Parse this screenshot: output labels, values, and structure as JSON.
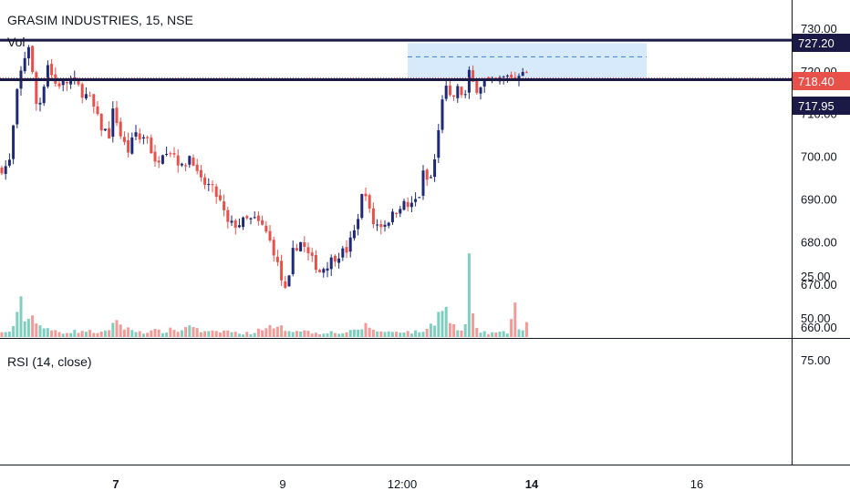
{
  "header": {
    "symbol_title": "GRASIM INDUSTRIES, 15, NSE",
    "volume_label": "Vol"
  },
  "rsi_pane": {
    "label": "RSI (14, close)"
  },
  "colors": {
    "up": "#1e2a78",
    "down": "#e8504a",
    "vol_up": "#7fcfc0",
    "vol_down": "#f29b98",
    "level_line": "#1b1a46",
    "range_box": "#cfe6fb",
    "current_tag": "#e8504a"
  },
  "price_tags": {
    "upper_level": "727.20",
    "current_price": "718.40",
    "lower_level": "717.95"
  },
  "chart_data": [
    {
      "type": "candlestick",
      "title": "GRASIM INDUSTRIES, 15, NSE",
      "ylim": [
        658,
        732
      ],
      "y_ticks": [
        "730.00",
        "720.00",
        "710.00",
        "700.00",
        "690.00",
        "680.00",
        "670.00",
        "660.00"
      ],
      "x_ticks": [
        {
          "label": "7",
          "bold": true
        },
        {
          "label": "9",
          "bold": false
        },
        {
          "label": "12:00",
          "bold": false
        },
        {
          "label": "14",
          "bold": true
        },
        {
          "label": "16",
          "bold": false
        }
      ],
      "horizontal_levels": [
        727.2,
        717.95
      ],
      "current_price": 718.4,
      "range_box": {
        "low": 718,
        "high": 726.5,
        "mid": 723.3
      },
      "close_path": [
        [
          0,
          697
        ],
        [
          10,
          698
        ],
        [
          20,
          717
        ],
        [
          28,
          724
        ],
        [
          33,
          727
        ],
        [
          38,
          712
        ],
        [
          45,
          713
        ],
        [
          52,
          722
        ],
        [
          60,
          717
        ],
        [
          70,
          717
        ],
        [
          80,
          718
        ],
        [
          90,
          715
        ],
        [
          100,
          713
        ],
        [
          110,
          707
        ],
        [
          120,
          705
        ],
        [
          125,
          712
        ],
        [
          130,
          706
        ],
        [
          140,
          701
        ],
        [
          150,
          706
        ],
        [
          155,
          703
        ],
        [
          160,
          706
        ],
        [
          170,
          698
        ],
        [
          180,
          702
        ],
        [
          190,
          701
        ],
        [
          200,
          697
        ],
        [
          210,
          701
        ],
        [
          215,
          696
        ],
        [
          220,
          694
        ],
        [
          230,
          693
        ],
        [
          240,
          690
        ],
        [
          250,
          684
        ],
        [
          260,
          684
        ],
        [
          270,
          685
        ],
        [
          280,
          685
        ],
        [
          290,
          683
        ],
        [
          300,
          678
        ],
        [
          310,
          670
        ],
        [
          315,
          667
        ],
        [
          320,
          677
        ],
        [
          325,
          679
        ],
        [
          330,
          680
        ],
        [
          340,
          676
        ],
        [
          345,
          675
        ],
        [
          350,
          673
        ],
        [
          360,
          675
        ],
        [
          370,
          677
        ],
        [
          380,
          678
        ],
        [
          390,
          683
        ],
        [
          395,
          689
        ],
        [
          400,
          693
        ],
        [
          405,
          687
        ],
        [
          410,
          684
        ],
        [
          420,
          684
        ],
        [
          430,
          686
        ],
        [
          440,
          689
        ],
        [
          450,
          688
        ],
        [
          460,
          691
        ],
        [
          465,
          697
        ],
        [
          470,
          693
        ],
        [
          475,
          697
        ],
        [
          480,
          704
        ],
        [
          485,
          714
        ],
        [
          490,
          716
        ],
        [
          495,
          712
        ],
        [
          500,
          716
        ],
        [
          505,
          715
        ],
        [
          510,
          714
        ],
        [
          515,
          720
        ],
        [
          520,
          716
        ],
        [
          525,
          716
        ],
        [
          530,
          718
        ],
        [
          540,
          717
        ],
        [
          550,
          718
        ],
        [
          560,
          719
        ],
        [
          565,
          718
        ],
        [
          570,
          720
        ],
        [
          575,
          721
        ],
        [
          578,
          718.4
        ]
      ],
      "volume_path": [
        [
          0,
          5
        ],
        [
          10,
          7
        ],
        [
          18,
          20
        ],
        [
          22,
          45
        ],
        [
          26,
          28
        ],
        [
          32,
          22
        ],
        [
          38,
          30
        ],
        [
          44,
          15
        ],
        [
          52,
          9
        ],
        [
          60,
          8
        ],
        [
          70,
          6
        ],
        [
          80,
          7
        ],
        [
          90,
          8
        ],
        [
          100,
          7
        ],
        [
          110,
          6
        ],
        [
          120,
          7
        ],
        [
          127,
          30
        ],
        [
          132,
          15
        ],
        [
          140,
          10
        ],
        [
          150,
          8
        ],
        [
          160,
          6
        ],
        [
          170,
          8
        ],
        [
          180,
          7
        ],
        [
          190,
          10
        ],
        [
          200,
          8
        ],
        [
          210,
          20
        ],
        [
          215,
          10
        ],
        [
          220,
          7
        ],
        [
          230,
          6
        ],
        [
          240,
          7
        ],
        [
          250,
          8
        ],
        [
          260,
          5
        ],
        [
          270,
          5
        ],
        [
          280,
          6
        ],
        [
          290,
          15
        ],
        [
          300,
          10
        ],
        [
          310,
          12
        ],
        [
          320,
          8
        ],
        [
          330,
          10
        ],
        [
          340,
          6
        ],
        [
          350,
          5
        ],
        [
          360,
          7
        ],
        [
          370,
          5
        ],
        [
          380,
          6
        ],
        [
          390,
          8
        ],
        [
          400,
          15
        ],
        [
          410,
          10
        ],
        [
          420,
          6
        ],
        [
          430,
          7
        ],
        [
          440,
          8
        ],
        [
          450,
          6
        ],
        [
          460,
          7
        ],
        [
          470,
          10
        ],
        [
          475,
          20
        ],
        [
          480,
          25
        ],
        [
          484,
          55
        ],
        [
          490,
          30
        ],
        [
          495,
          18
        ],
        [
          500,
          10
        ],
        [
          505,
          8
        ],
        [
          510,
          12
        ],
        [
          515,
          90
        ],
        [
          520,
          15
        ],
        [
          525,
          7
        ],
        [
          530,
          6
        ],
        [
          540,
          5
        ],
        [
          550,
          6
        ],
        [
          555,
          5
        ],
        [
          560,
          8
        ],
        [
          564,
          70
        ],
        [
          568,
          10
        ],
        [
          575,
          8
        ],
        [
          578,
          20
        ]
      ]
    },
    {
      "type": "line",
      "title": "RSI (14, close)",
      "y_ticks": [
        "75.00",
        "50.00",
        "25.00"
      ],
      "ylim": [
        15,
        85
      ]
    }
  ]
}
